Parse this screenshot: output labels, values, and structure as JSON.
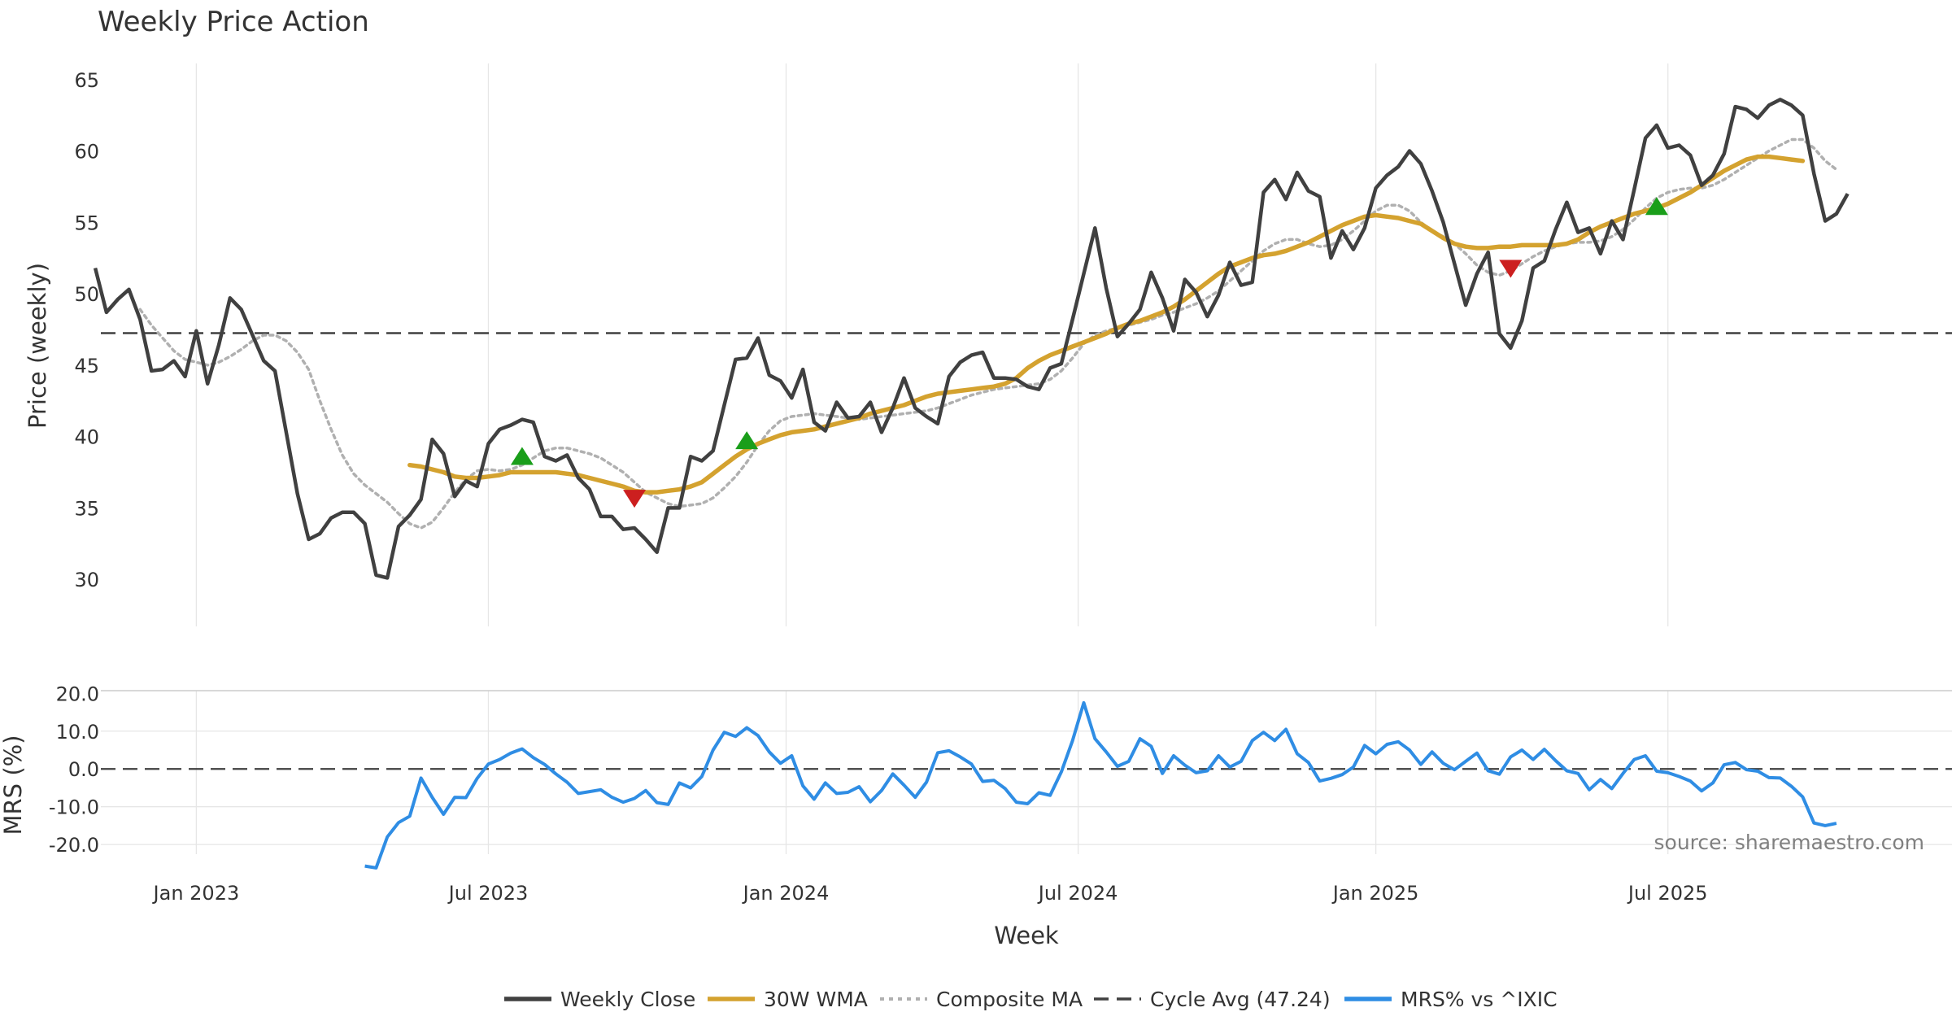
{
  "chart_data": {
    "type": "line",
    "title": "Weekly Price Action",
    "xlabel": "Week",
    "source": "source: sharemaestro.com",
    "x_ticks": [
      {
        "label": "Jan 2023",
        "week": 9
      },
      {
        "label": "Jul 2023",
        "week": 35
      },
      {
        "label": "Jan 2024",
        "week": 61.5
      },
      {
        "label": "Jul 2024",
        "week": 87.5
      },
      {
        "label": "Jan 2025",
        "week": 114
      },
      {
        "label": "Jul 2025",
        "week": 140
      }
    ],
    "x_range": [
      0.5,
      165
    ],
    "price_panel": {
      "ylabel": "Price (weekly)",
      "ylim": [
        28.3,
        65.5
      ],
      "yticks": [
        30,
        35,
        40,
        45,
        50,
        55,
        60,
        65
      ],
      "cycle_avg": 47.24
    },
    "mrs_panel": {
      "ylabel": "MRS (%)",
      "ylim": [
        -26,
        20.5
      ],
      "yticks": [
        20,
        10,
        0,
        -10,
        -20
      ],
      "ytick_labels": [
        "20.0",
        "10.0",
        "0.0",
        "-10.0",
        "-20.0"
      ],
      "zero_line": 0
    },
    "series": [
      {
        "name": "Weekly Close",
        "color": "#404040",
        "start_week": 0,
        "values": [
          51.8,
          48.7,
          49.6,
          50.3,
          48.2,
          44.6,
          44.7,
          45.3,
          44.2,
          47.4,
          43.7,
          46.4,
          49.7,
          48.9,
          47.1,
          45.3,
          44.6,
          40.3,
          36.0,
          32.8,
          33.2,
          34.3,
          34.7,
          34.7,
          33.9,
          30.3,
          30.1,
          33.7,
          34.5,
          35.6,
          39.8,
          38.8,
          35.8,
          36.9,
          36.5,
          39.5,
          40.5,
          40.8,
          41.2,
          41.0,
          38.6,
          38.3,
          38.7,
          37.1,
          36.3,
          34.4,
          34.4,
          33.5,
          33.6,
          32.8,
          31.9,
          35.0,
          35.0,
          38.6,
          38.3,
          39.0,
          42.2,
          45.4,
          45.5,
          46.9,
          44.3,
          43.9,
          42.7,
          44.7,
          41.0,
          40.4,
          42.4,
          41.3,
          41.4,
          42.4,
          40.3,
          42.0,
          44.1,
          42.0,
          41.4,
          40.9,
          44.2,
          45.2,
          45.7,
          45.9,
          44.1,
          44.1,
          44.0,
          43.5,
          43.3,
          44.8,
          45.1,
          48.2,
          51.4,
          54.6,
          50.4,
          47.0,
          47.9,
          48.9,
          51.5,
          49.7,
          47.4,
          51.0,
          50.1,
          48.4,
          49.9,
          52.2,
          50.6,
          50.8,
          57.1,
          58.0,
          56.6,
          58.5,
          57.2,
          56.8,
          52.5,
          54.4,
          53.1,
          54.6,
          57.4,
          58.3,
          58.9,
          60.0,
          59.1,
          57.2,
          55.0,
          52.1,
          49.2,
          51.4,
          52.9,
          47.2,
          46.2,
          48.1,
          51.8,
          52.3,
          54.5,
          56.4,
          54.3,
          54.6,
          52.8,
          55.1,
          53.8,
          57.3,
          60.9,
          61.8,
          60.2,
          60.4,
          59.7,
          57.6,
          58.3,
          59.8,
          63.1,
          62.9,
          62.3,
          63.2,
          63.6,
          63.2,
          62.5,
          58.4,
          55.1,
          55.6,
          57.0
        ]
      },
      {
        "name": "30W WMA",
        "color": "#d4a22f",
        "start_week": 28,
        "values": [
          38.0,
          37.9,
          37.7,
          37.5,
          37.2,
          37.1,
          37.1,
          37.2,
          37.3,
          37.5,
          37.5,
          37.5,
          37.5,
          37.5,
          37.4,
          37.3,
          37.1,
          36.9,
          36.7,
          36.5,
          36.2,
          36.1,
          36.1,
          36.2,
          36.3,
          36.5,
          36.8,
          37.4,
          38.0,
          38.6,
          39.1,
          39.5,
          39.8,
          40.1,
          40.3,
          40.4,
          40.5,
          40.7,
          40.9,
          41.1,
          41.3,
          41.6,
          41.8,
          42.0,
          42.2,
          42.5,
          42.8,
          43.0,
          43.1,
          43.2,
          43.3,
          43.4,
          43.5,
          43.7,
          44.1,
          44.8,
          45.3,
          45.7,
          46.0,
          46.3,
          46.6,
          46.9,
          47.2,
          47.6,
          47.9,
          48.1,
          48.4,
          48.7,
          49.1,
          49.6,
          50.2,
          50.8,
          51.4,
          51.9,
          52.2,
          52.5,
          52.7,
          52.8,
          53.0,
          53.3,
          53.6,
          54.0,
          54.4,
          54.8,
          55.1,
          55.4,
          55.5,
          55.4,
          55.3,
          55.1,
          54.9,
          54.4,
          53.9,
          53.5,
          53.3,
          53.2,
          53.2,
          53.3,
          53.3,
          53.4,
          53.4,
          53.4,
          53.4,
          53.5,
          53.8,
          54.3,
          54.7,
          55.0,
          55.3,
          55.6,
          55.8,
          56.0,
          56.3,
          56.7,
          57.1,
          57.6,
          58.1,
          58.6,
          59.0,
          59.4,
          59.6,
          59.6,
          59.5,
          59.4,
          59.3
        ]
      },
      {
        "name": "Composite MA",
        "color": "#b0b0b0",
        "start_week": 4,
        "values": [
          48.9,
          47.8,
          46.9,
          46.0,
          45.4,
          45.2,
          45.0,
          45.2,
          45.6,
          46.1,
          46.7,
          47.1,
          47.1,
          46.7,
          45.9,
          44.7,
          42.5,
          40.5,
          38.7,
          37.4,
          36.6,
          36.0,
          35.4,
          34.6,
          33.9,
          33.6,
          34.0,
          35.0,
          36.1,
          37.0,
          37.6,
          37.7,
          37.6,
          37.7,
          38.0,
          38.5,
          39.0,
          39.2,
          39.2,
          39.0,
          38.8,
          38.5,
          38.0,
          37.5,
          36.8,
          36.1,
          35.7,
          35.3,
          35.1,
          35.2,
          35.3,
          35.7,
          36.4,
          37.2,
          38.2,
          39.4,
          40.4,
          41.1,
          41.4,
          41.5,
          41.6,
          41.5,
          41.4,
          41.3,
          41.2,
          41.3,
          41.4,
          41.5,
          41.6,
          41.7,
          41.8,
          42.0,
          42.3,
          42.6,
          42.9,
          43.1,
          43.3,
          43.4,
          43.5,
          43.6,
          43.7,
          44.0,
          44.6,
          45.5,
          46.5,
          47.1,
          47.4,
          47.6,
          47.8,
          48.0,
          48.2,
          48.5,
          48.7,
          49.0,
          49.3,
          49.7,
          50.2,
          50.9,
          51.6,
          52.3,
          53.0,
          53.5,
          53.8,
          53.8,
          53.5,
          53.3,
          53.4,
          53.8,
          54.4,
          55.1,
          55.8,
          56.2,
          56.2,
          55.8,
          55.0,
          54.4,
          54.0,
          53.5,
          52.8,
          52.0,
          51.5,
          51.3,
          51.6,
          52.1,
          52.6,
          53.0,
          53.3,
          53.5,
          53.6,
          53.6,
          53.7,
          54.0,
          54.5,
          55.2,
          56.0,
          56.7,
          57.1,
          57.3,
          57.4,
          57.4,
          57.6,
          58.0,
          58.5,
          59.0,
          59.5,
          60.0,
          60.4,
          60.8,
          60.8,
          60.2,
          59.3,
          58.7
        ]
      },
      {
        "name": "Cycle Avg (47.24)",
        "color": "#404040",
        "value": 47.24
      },
      {
        "name": "MRS% vs ^IXIC",
        "color": "#2f8de4",
        "start_week": 24,
        "values": [
          -25.7,
          -26.2,
          -18.0,
          -14.2,
          -12.5,
          -2.4,
          -7.5,
          -12.0,
          -7.5,
          -7.6,
          -2.5,
          1.3,
          2.5,
          4.2,
          5.3,
          3.0,
          1.2,
          -1.3,
          -3.5,
          -6.5,
          -6.0,
          -5.5,
          -7.5,
          -8.8,
          -7.8,
          -5.7,
          -8.9,
          -9.4,
          -3.7,
          -5.0,
          -2.0,
          5.0,
          9.7,
          8.6,
          10.9,
          8.8,
          4.5,
          1.5,
          3.5,
          -4.5,
          -8.0,
          -3.7,
          -6.5,
          -6.2,
          -4.7,
          -8.7,
          -5.7,
          -1.3,
          -4.3,
          -7.5,
          -3.5,
          4.3,
          4.8,
          3.2,
          1.3,
          -3.3,
          -3.0,
          -5.2,
          -8.8,
          -9.2,
          -6.3,
          -7.0,
          -0.8,
          7.5,
          17.5,
          8.0,
          4.5,
          0.7,
          2.0,
          8.0,
          6.0,
          -1.2,
          3.5,
          1.0,
          -1.0,
          -0.5,
          3.5,
          0.5,
          2.0,
          7.5,
          9.7,
          7.5,
          10.5,
          4.0,
          1.7,
          -3.2,
          -2.5,
          -1.5,
          0.5,
          6.2,
          4.0,
          6.5,
          7.2,
          5.0,
          1.2,
          4.5,
          1.5,
          -0.2,
          2.0,
          4.2,
          -0.5,
          -1.4,
          3.2,
          5.0,
          2.5,
          5.2,
          2.2,
          -0.5,
          -1.2,
          -5.5,
          -2.8,
          -5.2,
          -1.2,
          2.5,
          3.5,
          -0.6,
          -1.0,
          -2.0,
          -3.2,
          -5.8,
          -3.7,
          1.1,
          1.7,
          -0.2,
          -0.6,
          -2.3,
          -2.4,
          -4.6,
          -7.4,
          -14.3,
          -15.0,
          -14.4
        ]
      }
    ],
    "markers": [
      {
        "type": "buy",
        "week": 38,
        "value": 38.7,
        "color": "#1a9e1a"
      },
      {
        "type": "sell",
        "week": 48,
        "value": 35.7,
        "color": "#cc1f1f"
      },
      {
        "type": "buy",
        "week": 58,
        "value": 39.8,
        "color": "#1a9e1a"
      },
      {
        "type": "sell",
        "week": 126,
        "value": 51.8,
        "color": "#cc1f1f"
      },
      {
        "type": "buy",
        "week": 139,
        "value": 56.2,
        "color": "#1a9e1a"
      }
    ],
    "legend": {
      "position": "bottom-center",
      "items": [
        {
          "label": "Weekly Close",
          "color": "#404040",
          "style": "solid"
        },
        {
          "label": "30W WMA",
          "color": "#d4a22f",
          "style": "solid"
        },
        {
          "label": "Composite MA",
          "color": "#b0b0b0",
          "style": "dotted"
        },
        {
          "label": "Cycle Avg (47.24)",
          "color": "#404040",
          "style": "dashed"
        },
        {
          "label": "MRS% vs ^IXIC",
          "color": "#2f8de4",
          "style": "solid"
        }
      ]
    }
  }
}
